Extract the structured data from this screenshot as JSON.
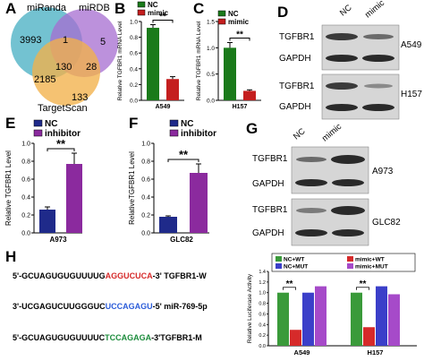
{
  "panels": {
    "A": {
      "label": "A",
      "sets": [
        "miRanda",
        "miRDB",
        "TargetScan"
      ],
      "counts": {
        "miRanda_only": "3993",
        "miRDB_only": "5",
        "TargetScan_only": "133",
        "miRanda_miRDB": "1",
        "miRanda_TargetScan": "2185",
        "miRDB_TargetScan": "28",
        "all": "130"
      },
      "colors": {
        "miRanda": "#5ab7c9",
        "miRDB": "#a66cd0",
        "TargetScan": "#f2b14a"
      }
    },
    "B": {
      "label": "B"
    },
    "C": {
      "label": "C"
    },
    "D": {
      "label": "D",
      "lanes": [
        "NC",
        "mimic"
      ],
      "rows": [
        "TGFBR1",
        "GAPDH",
        "TGFBR1",
        "GAPDH"
      ],
      "cells": [
        "A549",
        "H157"
      ]
    },
    "E": {
      "label": "E"
    },
    "F": {
      "label": "F"
    },
    "G": {
      "label": "G",
      "lanes": [
        "NC",
        "mimic"
      ],
      "rows": [
        "TGFBR1",
        "GAPDH",
        "TGFBR1",
        "GAPDH"
      ],
      "cells": [
        "A973",
        "GLC82"
      ]
    },
    "H": {
      "label": "H",
      "seq1": {
        "prefix": "5'-GCUAGUGUGUUUUG",
        "site": "AGGUCUCA",
        "suffix": "-3'  TGFBR1-W",
        "site_color": "#d62a2a"
      },
      "seq2": {
        "prefix": "3'-UCGAGUCUUGGGUC",
        "site": "UCCAGAGU",
        "suffix": "-5'  miR-769-5p",
        "site_color": "#2b5cd9"
      },
      "seq3": {
        "prefix": "5'-GCUAGUGUGUUUUC",
        "site": "TCCAGAGA",
        "suffix": "-3'TGFBR1-M",
        "site_color": "#1c8c3c"
      }
    }
  },
  "chart_data": [
    {
      "panel": "B",
      "type": "bar",
      "categories": [
        "A549"
      ],
      "series": [
        {
          "name": "NC",
          "values": [
            0.92
          ]
        },
        {
          "name": "mimic",
          "values": [
            0.27
          ]
        }
      ],
      "errors": [
        0.04,
        0.03
      ],
      "ylabel": "Relative TGFBR1 mRNA Level",
      "xlabel": "A549",
      "ylim": [
        0,
        1.0
      ],
      "yticks": [
        "0.0",
        "0.2",
        "0.4",
        "0.6",
        "0.8",
        "1.0"
      ],
      "significance": "**",
      "colors": [
        "#1a7a1a",
        "#c41e1e"
      ]
    },
    {
      "panel": "C",
      "type": "bar",
      "categories": [
        "H157"
      ],
      "series": [
        {
          "name": "NC",
          "values": [
            1.0
          ]
        },
        {
          "name": "mimic",
          "values": [
            0.18
          ]
        }
      ],
      "errors": [
        0.1,
        0.02
      ],
      "ylabel": "Relative TGFBR1 mRNA Level",
      "xlabel": "H157",
      "ylim": [
        0,
        1.5
      ],
      "yticks": [
        "0.0",
        "0.5",
        "1.0",
        "1.5"
      ],
      "significance": "**",
      "colors": [
        "#1a7a1a",
        "#c41e1e"
      ]
    },
    {
      "panel": "E",
      "type": "bar",
      "categories": [
        "A973"
      ],
      "series": [
        {
          "name": "NC",
          "values": [
            0.26
          ]
        },
        {
          "name": "inhibitor",
          "values": [
            0.77
          ]
        }
      ],
      "errors": [
        0.03,
        0.12
      ],
      "ylabel": "Relative TGFBR1 Level",
      "xlabel": "A973",
      "ylim": [
        0,
        1.0
      ],
      "yticks": [
        "0.0",
        "0.2",
        "0.4",
        "0.6",
        "0.8",
        "1.0"
      ],
      "significance": "**",
      "colors": [
        "#1f2a8a",
        "#8b2a9e"
      ]
    },
    {
      "panel": "F",
      "type": "bar",
      "categories": [
        "GLC82"
      ],
      "series": [
        {
          "name": "NC",
          "values": [
            0.18
          ]
        },
        {
          "name": "inhibitor",
          "values": [
            0.67
          ]
        }
      ],
      "errors": [
        0.01,
        0.1
      ],
      "ylabel": "RelativeTGFBR1 Level",
      "xlabel": "GLC82",
      "ylim": [
        0,
        1.0
      ],
      "yticks": [
        "0.0",
        "0.2",
        "0.4",
        "0.6",
        "0.8",
        "1.0"
      ],
      "significance": "**",
      "colors": [
        "#1f2a8a",
        "#8b2a9e"
      ]
    },
    {
      "panel": "H",
      "type": "bar",
      "categories": [
        "A549",
        "H157"
      ],
      "series": [
        {
          "name": "NC+WT",
          "values": [
            1.0,
            1.0
          ]
        },
        {
          "name": "mimic+WT",
          "values": [
            0.3,
            0.35
          ]
        },
        {
          "name": "NC+MUT",
          "values": [
            1.0,
            1.12
          ]
        },
        {
          "name": "mimic+MUT",
          "values": [
            1.12,
            0.97
          ]
        }
      ],
      "ylabel": "Relative Luciferase Activity",
      "ylim": [
        0,
        1.4
      ],
      "yticks": [
        "0.0",
        "0.2",
        "0.4",
        "0.6",
        "0.8",
        "1.0",
        "1.2",
        "1.4"
      ],
      "significance": [
        "**",
        "**"
      ],
      "colors": [
        "#3a9a3a",
        "#d62a2a",
        "#3b3fc9",
        "#a64ac9"
      ]
    }
  ]
}
